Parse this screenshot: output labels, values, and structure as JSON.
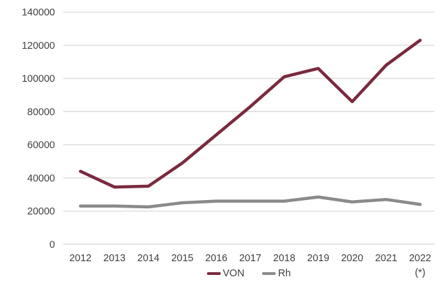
{
  "chart_data": {
    "type": "line",
    "title": "",
    "xlabel": "",
    "ylabel": "",
    "categories": [
      "2012",
      "2013",
      "2014",
      "2015",
      "2016",
      "2017",
      "2018",
      "2019",
      "2020",
      "2021",
      "2022"
    ],
    "x_note_under_last_category": "(*)",
    "series": [
      {
        "name": "VON",
        "values": [
          44000,
          34500,
          35000,
          49000,
          66000,
          83000,
          101000,
          106000,
          86000,
          108000,
          123000
        ]
      },
      {
        "name": "Rh",
        "values": [
          23000,
          23000,
          22500,
          25000,
          26000,
          26000,
          26000,
          28500,
          25500,
          27000,
          24000
        ]
      }
    ],
    "y_axis": {
      "min": 0,
      "max": 140000,
      "step": 20000,
      "tick_labels": [
        "0",
        "20000",
        "40000",
        "60000",
        "80000",
        "100000",
        "120000",
        "140000"
      ]
    },
    "grid": "horizontal",
    "legend_position": "bottom-center"
  },
  "colors": {
    "von_line": "#7a2a3e",
    "rh_line": "#8a8a8a",
    "gridline": "#d9d9d9",
    "axis_text": "#404040",
    "background": "#ffffff"
  }
}
